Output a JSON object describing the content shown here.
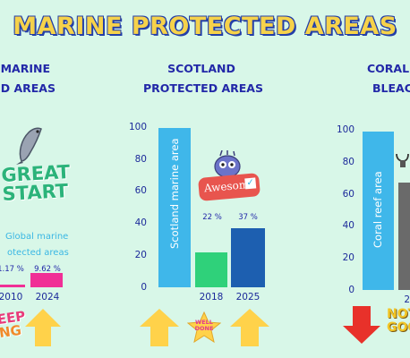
{
  "title": "MARINE PROTECTED AREAS",
  "left_panel": {
    "heading_line1": "MARINE",
    "heading_line2": "ED AREAS",
    "sticker_line1": "GREAT",
    "sticker_line2": "START",
    "caption_line1": "Global marine",
    "caption_line2": "otected areas",
    "pct_2010": "1.17 %",
    "pct_2024": "9.62 %",
    "x_2010": "2010",
    "x_2024": "2024",
    "sticker_bottom_line1": "EEP",
    "sticker_bottom_line2": "NG",
    "colors": {
      "bar": "#f02f96",
      "arrow": "#ffd24a"
    }
  },
  "middle_panel": {
    "heading_line1": "SCOTLAND",
    "heading_line2": "PROTECTED AREAS",
    "sticker_text": "Awesome",
    "star_text_1": "WELL",
    "star_text_2": "DONE",
    "colors": {
      "tall_bar": "#3fb7ea",
      "bar_2018": "#2fd17a",
      "bar_2025": "#1d5fb0",
      "arrow": "#ffd24a"
    }
  },
  "right_panel": {
    "heading_line1": "CORAL",
    "heading_line2": "BLEAC",
    "sticker_line1": "NOT",
    "sticker_line2": "GOO",
    "x_partial": "2",
    "colors": {
      "tall_bar": "#3fb7ea",
      "grey_bar": "#6a6a6a",
      "arrow": "#e8312a"
    }
  },
  "chart_data": [
    {
      "type": "bar",
      "title": "SCOTLAND PROTECTED AREAS",
      "categories": [
        "Scotland marine area",
        "2018",
        "2025"
      ],
      "values": [
        100,
        22,
        37
      ],
      "data_labels": [
        "Scotland marine area",
        "22 %",
        "37 %"
      ],
      "x_tick_labels": [
        "",
        "2018",
        "2025"
      ],
      "y_ticks": [
        "0",
        "20",
        "40",
        "60",
        "80",
        "100"
      ],
      "ylim": [
        0,
        100
      ]
    },
    {
      "type": "bar",
      "title": "CORAL BLEAC",
      "categories": [
        "Coral reef area",
        "2"
      ],
      "values": [
        100,
        67
      ],
      "data_labels": [
        "Coral reef area",
        ""
      ],
      "y_ticks": [
        "0",
        "20",
        "40",
        "60",
        "80",
        "100"
      ],
      "ylim": [
        0,
        100
      ]
    }
  ]
}
